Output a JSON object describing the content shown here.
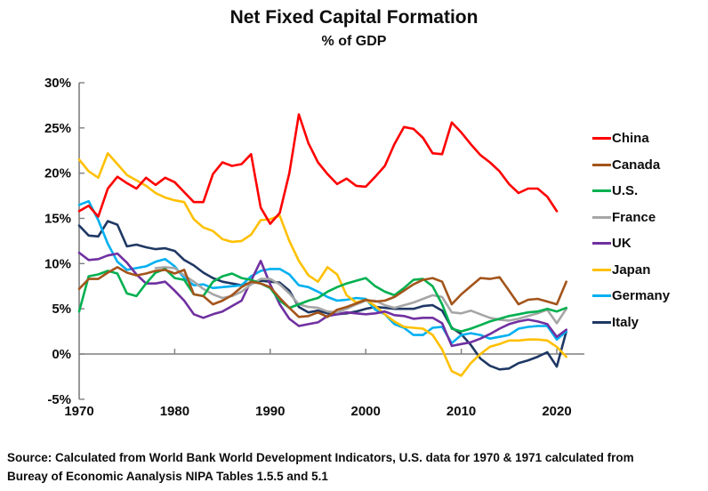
{
  "chart_data": {
    "type": "line",
    "title": "Net Fixed Capital Formation",
    "subtitle": "% of GDP",
    "xlabel": "",
    "ylabel": "",
    "ylim": [
      -5,
      30
    ],
    "xlim": [
      1970,
      2021.5
    ],
    "grid": "zero-line-only",
    "legend_position": "right",
    "axis_color": "#7f7f7f",
    "y_ticks": [
      {
        "label": "30%",
        "value": 30
      },
      {
        "label": "25%",
        "value": 25
      },
      {
        "label": "20%",
        "value": 20
      },
      {
        "label": "15%",
        "value": 15
      },
      {
        "label": "10%",
        "value": 10
      },
      {
        "label": "5%",
        "value": 5
      },
      {
        "label": "0%",
        "value": 0
      },
      {
        "label": "-5%",
        "value": -5
      }
    ],
    "x_ticks": [
      {
        "label": "1970",
        "year": 1970
      },
      {
        "label": "1980",
        "year": 1980
      },
      {
        "label": "1990",
        "year": 1990
      },
      {
        "label": "2000",
        "year": 2000
      },
      {
        "label": "2010",
        "year": 2010
      },
      {
        "label": "2020",
        "year": 2020
      }
    ],
    "x": [
      1970,
      1971,
      1972,
      1973,
      1974,
      1975,
      1976,
      1977,
      1978,
      1979,
      1980,
      1981,
      1982,
      1983,
      1984,
      1985,
      1986,
      1987,
      1988,
      1989,
      1990,
      1991,
      1992,
      1993,
      1994,
      1995,
      1996,
      1997,
      1998,
      1999,
      2000,
      2001,
      2002,
      2003,
      2004,
      2005,
      2006,
      2007,
      2008,
      2009,
      2010,
      2011,
      2012,
      2013,
      2014,
      2015,
      2016,
      2017,
      2018,
      2019,
      2020,
      2021
    ],
    "series": [
      {
        "name": "China",
        "color": "#FF0000",
        "values": [
          15.8,
          16.4,
          15.2,
          18.3,
          19.6,
          18.9,
          18.3,
          19.5,
          18.7,
          19.5,
          19.0,
          17.9,
          16.8,
          16.8,
          19.9,
          21.2,
          20.8,
          21.0,
          22.1,
          16.2,
          14.4,
          15.6,
          20.0,
          26.5,
          23.3,
          21.2,
          19.9,
          18.8,
          19.4,
          18.6,
          18.5,
          19.6,
          20.8,
          23.2,
          25.1,
          24.9,
          23.9,
          22.2,
          22.1,
          25.6,
          24.5,
          23.2,
          22.0,
          21.2,
          20.2,
          18.8,
          17.8,
          18.3,
          18.3,
          17.4,
          15.8,
          null
        ]
      },
      {
        "name": "Canada",
        "color": "#A3541A",
        "values": [
          7.2,
          8.3,
          8.3,
          9.0,
          9.6,
          9.0,
          8.7,
          8.9,
          9.2,
          9.3,
          8.9,
          9.3,
          6.6,
          6.4,
          5.5,
          5.9,
          6.5,
          7.4,
          8.0,
          7.8,
          7.4,
          6.2,
          5.1,
          4.1,
          4.2,
          4.6,
          4.1,
          4.9,
          5.2,
          5.6,
          6.0,
          5.8,
          5.9,
          6.3,
          7.0,
          7.7,
          8.2,
          8.4,
          8.0,
          5.5,
          6.6,
          7.5,
          8.4,
          8.3,
          8.5,
          7.0,
          5.5,
          6.0,
          6.1,
          5.8,
          5.5,
          8.0
        ]
      },
      {
        "name": "U.S.",
        "color": "#00B050",
        "values": [
          4.7,
          8.6,
          8.8,
          9.2,
          8.9,
          6.7,
          6.4,
          7.8,
          9.0,
          9.4,
          8.4,
          8.2,
          6.6,
          6.4,
          8.0,
          8.6,
          8.9,
          8.4,
          8.2,
          7.8,
          7.3,
          5.9,
          5.1,
          5.5,
          5.9,
          6.2,
          6.9,
          7.4,
          7.8,
          8.1,
          8.4,
          7.5,
          6.9,
          6.5,
          7.3,
          8.2,
          8.3,
          7.5,
          5.5,
          2.8,
          2.5,
          2.8,
          3.2,
          3.6,
          3.9,
          4.2,
          4.4,
          4.6,
          4.7,
          5.0,
          4.7,
          5.1
        ]
      },
      {
        "name": "France",
        "color": "#A6A6A6",
        "values": [
          null,
          null,
          null,
          null,
          null,
          null,
          null,
          null,
          9.5,
          9.6,
          9.5,
          8.7,
          8.0,
          7.2,
          6.6,
          6.2,
          6.4,
          6.9,
          7.7,
          8.3,
          8.3,
          7.7,
          6.7,
          5.5,
          5.2,
          5.1,
          4.7,
          4.6,
          5.0,
          5.5,
          5.9,
          5.9,
          5.4,
          5.1,
          5.4,
          5.7,
          6.1,
          6.5,
          6.3,
          4.6,
          4.5,
          4.8,
          4.4,
          4.0,
          3.8,
          3.7,
          3.9,
          4.2,
          4.5,
          4.9,
          3.4,
          5.0
        ]
      },
      {
        "name": "UK",
        "color": "#7030A0",
        "values": [
          11.2,
          10.4,
          10.5,
          10.9,
          11.1,
          10.1,
          8.8,
          7.8,
          7.8,
          8.0,
          7.0,
          5.9,
          4.4,
          4.0,
          4.4,
          4.7,
          5.3,
          5.9,
          8.1,
          10.3,
          7.7,
          5.5,
          3.9,
          3.1,
          3.3,
          3.5,
          4.2,
          4.4,
          4.6,
          4.5,
          4.4,
          4.5,
          4.7,
          4.3,
          4.2,
          3.9,
          4.0,
          4.0,
          3.4,
          0.9,
          1.1,
          1.3,
          1.7,
          2.2,
          2.8,
          3.3,
          3.6,
          3.8,
          3.6,
          3.3,
          1.9,
          2.7
        ]
      },
      {
        "name": "Japan",
        "color": "#FFC000",
        "values": [
          21.5,
          20.2,
          19.5,
          22.2,
          21.0,
          19.8,
          19.2,
          18.6,
          17.8,
          17.3,
          17.0,
          16.8,
          14.9,
          14.0,
          13.6,
          12.7,
          12.4,
          12.5,
          13.2,
          14.8,
          14.9,
          15.3,
          12.5,
          10.3,
          8.7,
          8.0,
          9.6,
          8.8,
          6.5,
          5.7,
          6.0,
          5.3,
          4.4,
          3.6,
          3.0,
          2.9,
          2.8,
          2.1,
          0.5,
          -1.9,
          -2.4,
          -1.0,
          0.0,
          0.8,
          1.1,
          1.5,
          1.5,
          1.6,
          1.6,
          1.5,
          0.8,
          -0.3
        ]
      },
      {
        "name": "Germany",
        "color": "#00B0F0",
        "values": [
          16.5,
          16.9,
          14.8,
          12.2,
          10.2,
          9.3,
          9.5,
          9.7,
          10.2,
          10.5,
          9.7,
          8.4,
          7.6,
          7.7,
          7.3,
          7.4,
          7.5,
          7.6,
          8.6,
          9.2,
          9.4,
          9.4,
          8.8,
          7.6,
          7.4,
          6.9,
          6.3,
          5.9,
          6.0,
          6.2,
          6.1,
          4.9,
          4.4,
          3.3,
          2.9,
          2.1,
          2.1,
          2.9,
          3.0,
          1.2,
          2.1,
          2.3,
          2.1,
          1.7,
          1.9,
          2.1,
          2.8,
          3.0,
          3.1,
          3.1,
          1.6,
          2.5
        ]
      },
      {
        "name": "Italy",
        "color": "#1F3864",
        "values": [
          14.2,
          13.1,
          13.0,
          14.7,
          14.3,
          11.9,
          12.1,
          11.8,
          11.6,
          11.7,
          11.4,
          10.4,
          9.8,
          9.0,
          8.4,
          8.0,
          7.8,
          7.6,
          7.9,
          8.1,
          8.0,
          7.9,
          7.0,
          5.2,
          4.6,
          4.8,
          4.5,
          4.4,
          4.5,
          4.7,
          5.0,
          5.2,
          5.1,
          5.0,
          5.0,
          5.0,
          5.3,
          5.4,
          4.8,
          2.9,
          2.2,
          1.0,
          -0.5,
          -1.3,
          -1.7,
          -1.6,
          -1.0,
          -0.7,
          -0.3,
          0.2,
          -1.4,
          2.5
        ]
      }
    ]
  },
  "source": {
    "line1": "Source:  Calculated from World Bank World Development Indicators, U.S. data for 1970 & 1971 calculated from",
    "line2": "Bureay of Economic Aanalysis NIPA Tables 1.5.5 and 5.1"
  }
}
